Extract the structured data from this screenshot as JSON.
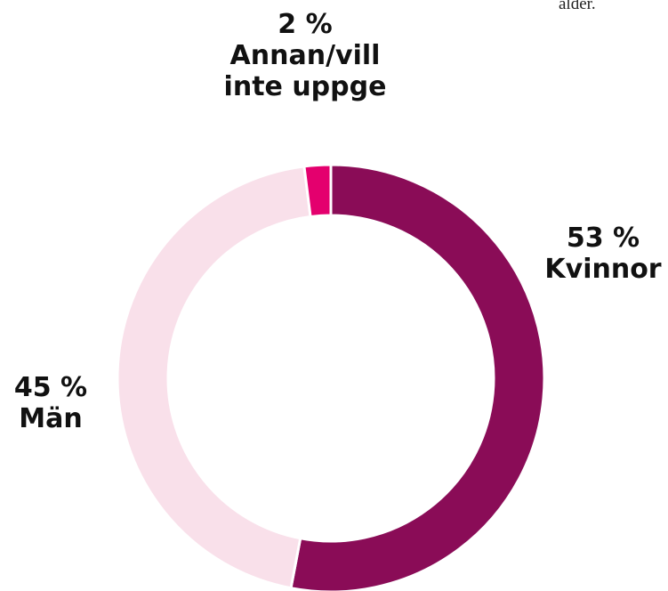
{
  "note": "ålder.",
  "chart_data": {
    "type": "donut",
    "categories": [
      "Kvinnor",
      "Män",
      "Annan/vill inte uppge"
    ],
    "values": [
      53,
      45,
      2
    ],
    "value_labels": [
      "53 %",
      "45 %",
      "2 %"
    ],
    "colors": [
      "#8a0c57",
      "#f9e0ea",
      "#e4006e"
    ]
  }
}
